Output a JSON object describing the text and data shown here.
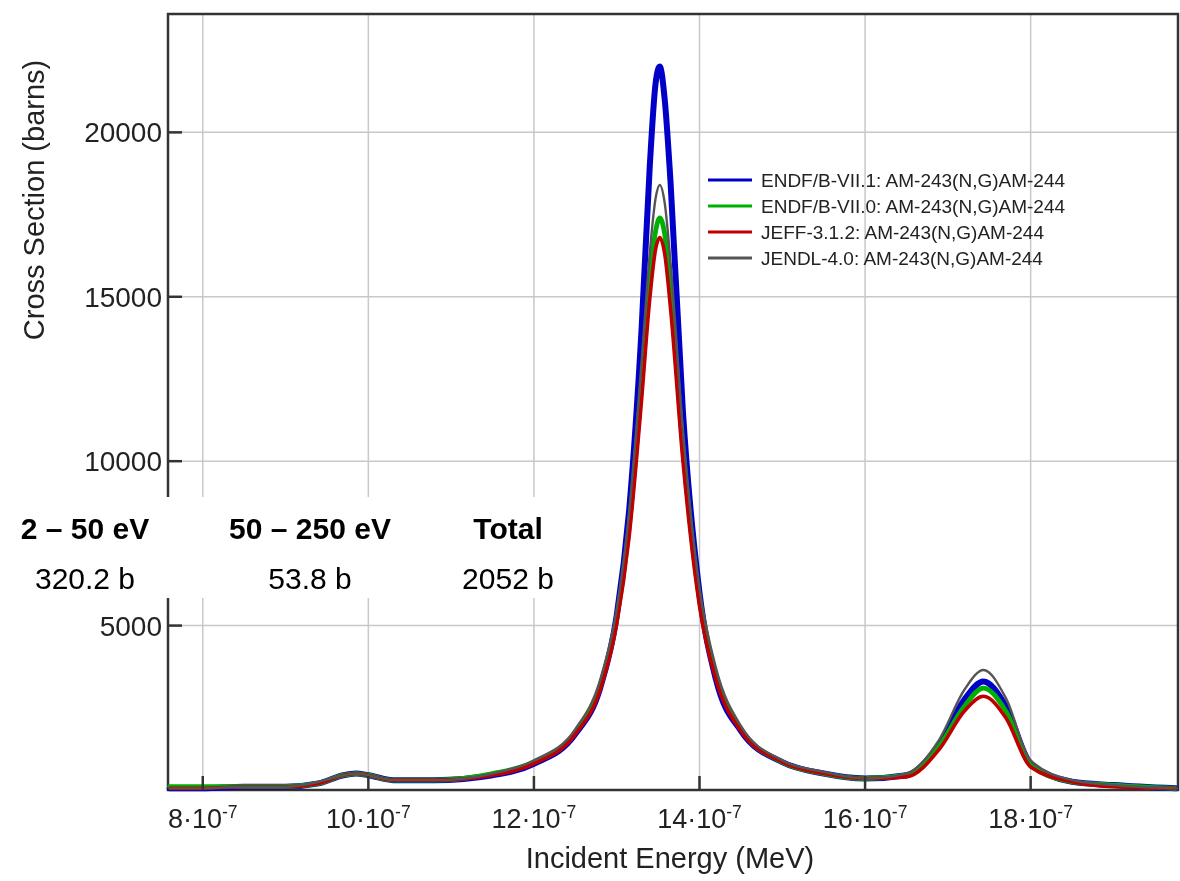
{
  "chart_data": {
    "type": "line",
    "xlabel": "Incident Energy (MeV)",
    "ylabel": "Cross Section (barns)",
    "x": [
      7.6e-07,
      8e-07,
      8.5e-07,
      9e-07,
      9.4e-07,
      9.7e-07,
      9.85e-07,
      1e-06,
      1.03e-06,
      1.08e-06,
      1.15e-06,
      1.2e-06,
      1.25e-06,
      1.28e-06,
      1.3e-06,
      1.315e-06,
      1.33e-06,
      1.34e-06,
      1.347e-06,
      1.352e-06,
      1.358e-06,
      1.365e-06,
      1.38e-06,
      1.4e-06,
      1.42e-06,
      1.45e-06,
      1.5e-06,
      1.55e-06,
      1.6e-06,
      1.65e-06,
      1.69e-06,
      1.72e-06,
      1.743e-06,
      1.77e-06,
      1.8e-06,
      1.85e-06,
      1.9e-06,
      1.975e-06
    ],
    "series": [
      {
        "name": "ENDF/B-VII.1: AM-243(N,G)AM-244",
        "color": "#0000c8",
        "values": [
          50,
          50,
          100,
          100,
          200,
          450,
          500,
          450,
          300,
          300,
          450,
          800,
          1700,
          3100,
          5300,
          8500,
          14000,
          19000,
          21500,
          22000,
          21000,
          18500,
          11500,
          6000,
          3350,
          1800,
          850,
          500,
          350,
          450,
          1400,
          2750,
          3300,
          2550,
          800,
          250,
          150,
          50
        ]
      },
      {
        "name": "ENDF/B-VII.0: AM-243(N,G)AM-244",
        "color": "#00b000",
        "values": [
          100,
          100,
          100,
          100,
          200,
          450,
          500,
          450,
          300,
          300,
          500,
          850,
          1750,
          3150,
          5200,
          8000,
          12300,
          15500,
          17000,
          17400,
          16900,
          15200,
          10400,
          5800,
          3500,
          1850,
          850,
          500,
          350,
          450,
          1350,
          2550,
          3100,
          2400,
          750,
          250,
          150,
          50
        ]
      },
      {
        "name": "JEFF-3.1.2: AM-243(N,G)AM-244",
        "color": "#c00000",
        "values": [
          50,
          50,
          100,
          100,
          200,
          450,
          500,
          450,
          300,
          300,
          450,
          800,
          1700,
          3050,
          5050,
          7700,
          11850,
          14950,
          16450,
          16800,
          16300,
          14650,
          10000,
          5600,
          3350,
          1800,
          850,
          500,
          350,
          400,
          1250,
          2400,
          2850,
          2200,
          700,
          250,
          100,
          50
        ]
      },
      {
        "name": "JENDL-4.0: AM-243(N,G)AM-244",
        "color": "#555555",
        "values": [
          50,
          50,
          100,
          100,
          250,
          450,
          500,
          450,
          300,
          300,
          500,
          900,
          1850,
          3350,
          5500,
          8450,
          13000,
          16350,
          18000,
          18400,
          17850,
          16050,
          10950,
          6150,
          3700,
          1950,
          900,
          550,
          350,
          500,
          1550,
          3050,
          3650,
          2800,
          900,
          300,
          150,
          50
        ]
      }
    ],
    "xlim": [
      7.58e-07,
      1.978e-06
    ],
    "xticks": [
      {
        "value": 8e-07,
        "label": "8·10$^{-7}$"
      },
      {
        "value": 1e-06,
        "label": "10·10$^{-7}$"
      },
      {
        "value": 1.2e-06,
        "label": "12·10$^{-7}$"
      },
      {
        "value": 1.4e-06,
        "label": "14·10$^{-7}$"
      },
      {
        "value": 1.6e-06,
        "label": "16·10$^{-7}$"
      },
      {
        "value": 1.8e-06,
        "label": "18·10$^{-7}$"
      }
    ],
    "ylim": [
      0,
      23600
    ],
    "yticks": [
      5000,
      10000,
      15000,
      20000
    ],
    "grid": true,
    "legend": "top right",
    "annotations": [
      "2 – 50 eV",
      "320.2 b",
      "50 – 250 eV",
      "53.8 b",
      "Total",
      "2052 b"
    ]
  }
}
